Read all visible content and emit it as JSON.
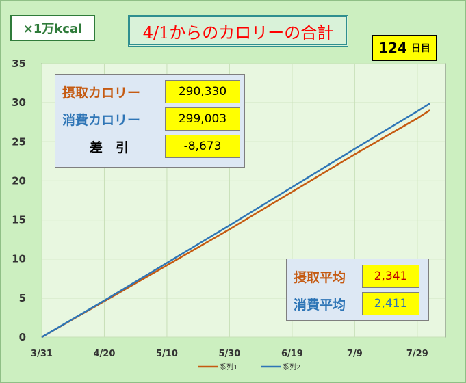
{
  "unit_label": "×1万kcal",
  "title": "4/1からのカロリーの合計",
  "days": {
    "value": "124",
    "unit": "日目"
  },
  "stats": [
    {
      "label": "摂取カロリー",
      "value": "290,330",
      "color": "#c55a11"
    },
    {
      "label": "消費カロリー",
      "value": "299,003",
      "color": "#2e75b6"
    },
    {
      "label": "差　引",
      "value": "-8,673",
      "color": "#000000"
    }
  ],
  "averages": [
    {
      "label": "摂取平均",
      "value": "2,341",
      "label_color": "#c55a11",
      "value_color": "#c00000"
    },
    {
      "label": "消費平均",
      "value": "2,411",
      "label_color": "#2e75b6",
      "value_color": "#2e75b6"
    }
  ],
  "chart_data": {
    "type": "line",
    "x": [
      "3/31",
      "4/20",
      "5/10",
      "5/30",
      "6/19",
      "7/9",
      "7/29",
      "8/2"
    ],
    "x_ticks": [
      "3/31",
      "4/20",
      "5/10",
      "5/30",
      "6/19",
      "7/9",
      "7/29"
    ],
    "xlim": [
      "3/31",
      "8/7"
    ],
    "ylim": [
      0,
      35
    ],
    "y_ticks": [
      0,
      5,
      10,
      15,
      20,
      25,
      30,
      35
    ],
    "grid": true,
    "legend": "bottom",
    "series": [
      {
        "name": "系列1",
        "color": "#c55a11",
        "values": [
          0,
          4.6,
          9.2,
          13.8,
          18.6,
          23.4,
          28.0,
          29.03
        ]
      },
      {
        "name": "系列2",
        "color": "#2e75b6",
        "values": [
          0,
          4.7,
          9.5,
          14.3,
          19.2,
          24.1,
          28.9,
          29.9
        ]
      }
    ]
  }
}
